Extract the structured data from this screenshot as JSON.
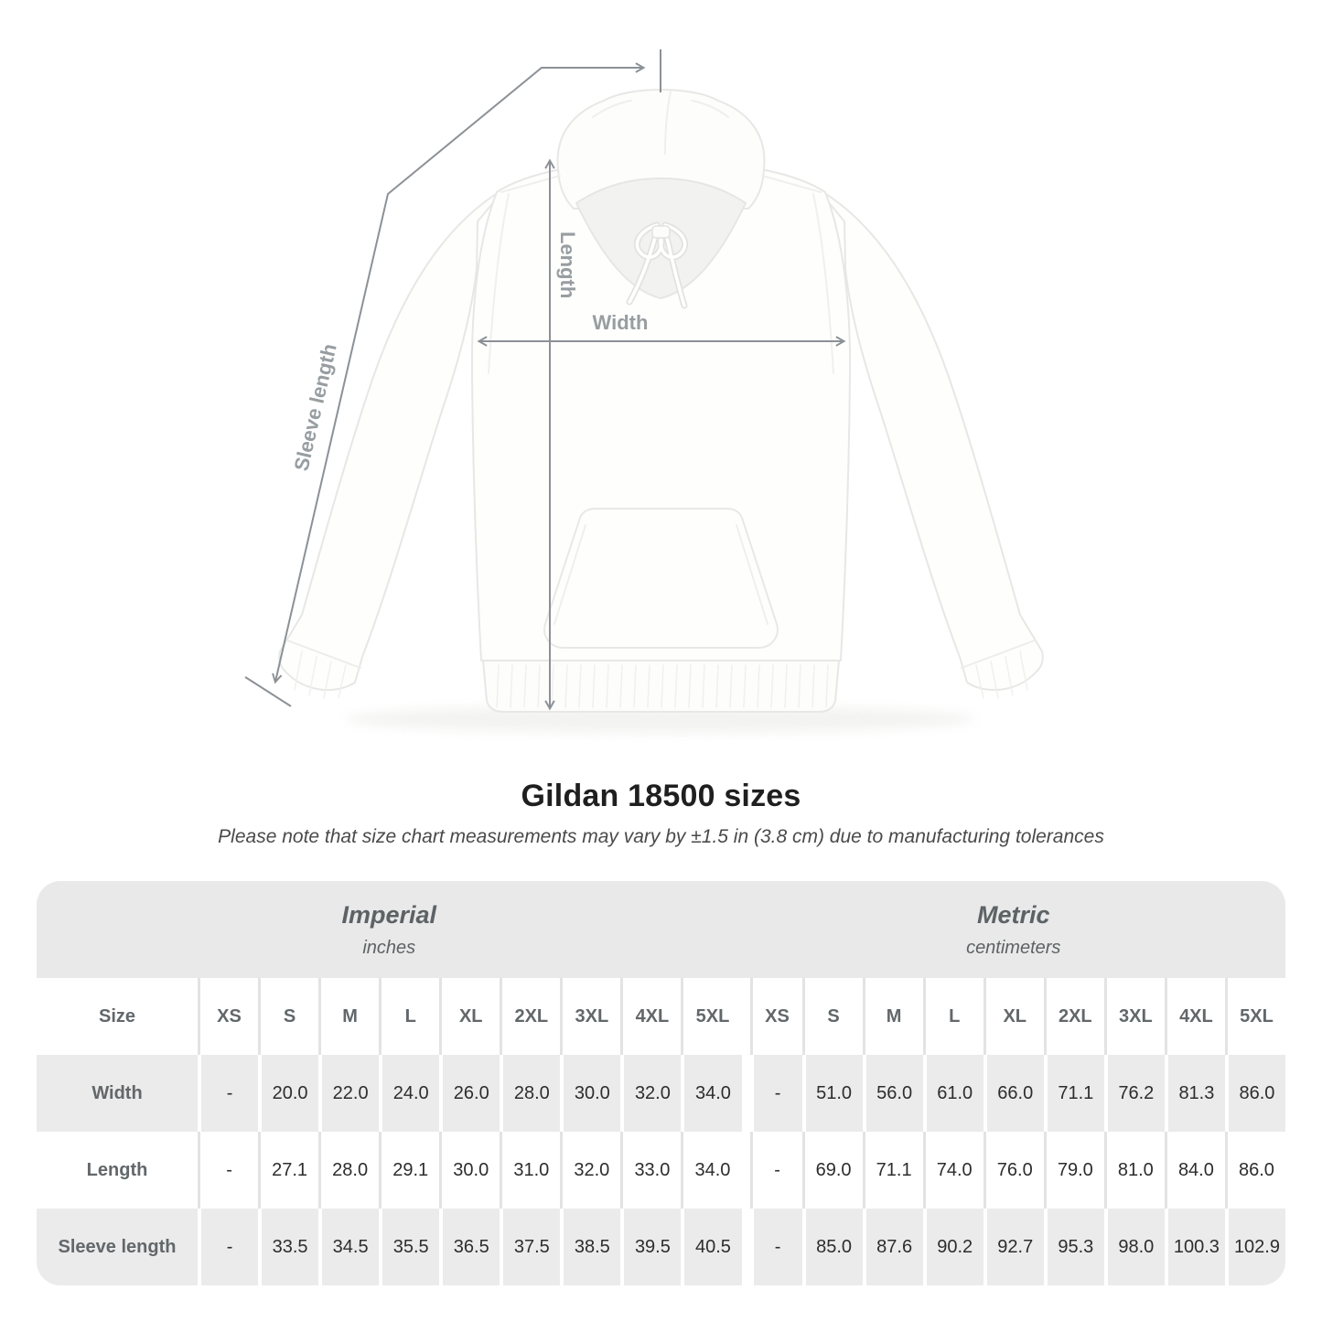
{
  "header": {
    "title": "Gildan 18500 sizes",
    "subtitle": "Please note that size chart measurements may vary by ±1.5 in (3.8 cm) due to manufacturing tolerances"
  },
  "diagram": {
    "length_label": "Length",
    "width_label": "Width",
    "sleeve_label": "Sleeve length",
    "line_color": "#8c9196",
    "label_color": "#979da1"
  },
  "table": {
    "groups": [
      {
        "name": "Imperial",
        "unit": "inches"
      },
      {
        "name": "Metric",
        "unit": "centimeters"
      }
    ],
    "size_column_header": "Size",
    "sizes": [
      "XS",
      "S",
      "M",
      "L",
      "XL",
      "2XL",
      "3XL",
      "4XL",
      "5XL"
    ],
    "rows": [
      {
        "label": "Width",
        "imperial": [
          "-",
          "20.0",
          "22.0",
          "24.0",
          "26.0",
          "28.0",
          "30.0",
          "32.0",
          "34.0"
        ],
        "metric": [
          "-",
          "51.0",
          "56.0",
          "61.0",
          "66.0",
          "71.1",
          "76.2",
          "81.3",
          "86.0"
        ]
      },
      {
        "label": "Length",
        "imperial": [
          "-",
          "27.1",
          "28.0",
          "29.1",
          "30.0",
          "31.0",
          "32.0",
          "33.0",
          "34.0"
        ],
        "metric": [
          "-",
          "69.0",
          "71.1",
          "74.0",
          "76.0",
          "79.0",
          "81.0",
          "84.0",
          "86.0"
        ]
      },
      {
        "label": "Sleeve length",
        "imperial": [
          "-",
          "33.5",
          "34.5",
          "35.5",
          "36.5",
          "37.5",
          "38.5",
          "39.5",
          "40.5"
        ],
        "metric": [
          "-",
          "85.0",
          "87.6",
          "90.2",
          "92.7",
          "95.3",
          "98.0",
          "100.3",
          "102.9"
        ]
      }
    ]
  }
}
